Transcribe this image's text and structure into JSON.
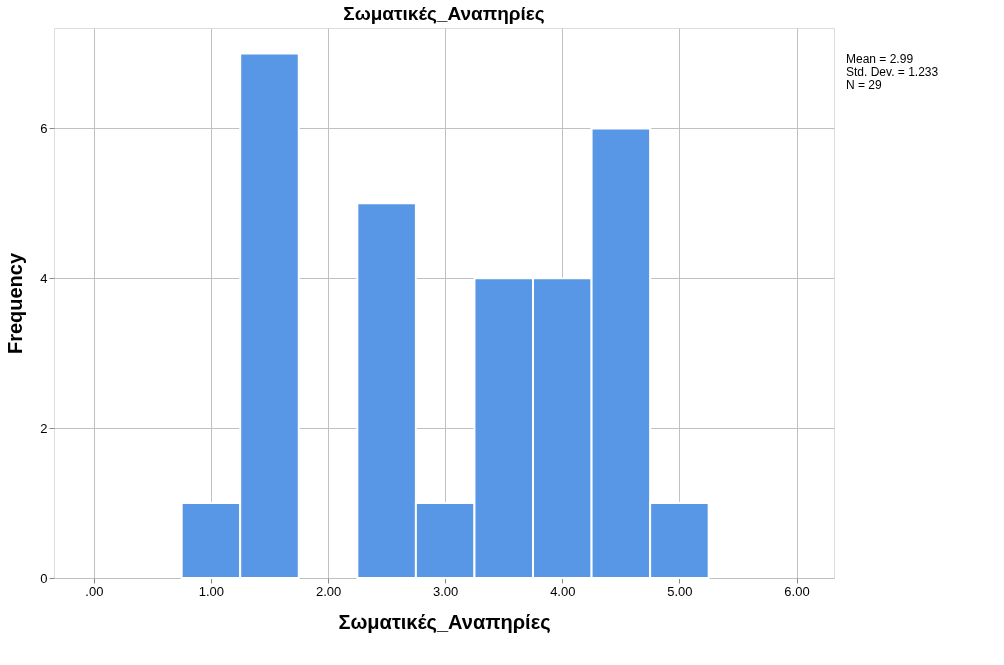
{
  "chart_data": {
    "type": "histogram",
    "title": "Σωματικές_Αναπηρίες",
    "xlabel": "Σωματικές_Αναπηρίες",
    "ylabel": "Frequency",
    "bins": [
      0.75,
      1.25,
      1.75,
      2.25,
      2.75,
      3.25,
      3.75,
      4.25,
      4.75,
      5.25
    ],
    "values": [
      1,
      7,
      0,
      5,
      1,
      4,
      4,
      6,
      1
    ],
    "color": "#5897e5",
    "xlim": [
      -0.34,
      6.32
    ],
    "ylim": [
      0,
      7.34
    ],
    "xticks": [
      {
        "value": 0,
        "label": ".00"
      },
      {
        "value": 1,
        "label": "1.00"
      },
      {
        "value": 2,
        "label": "2.00"
      },
      {
        "value": 3,
        "label": "3.00"
      },
      {
        "value": 4,
        "label": "4.00"
      },
      {
        "value": 5,
        "label": "5.00"
      },
      {
        "value": 6,
        "label": "6.00"
      }
    ],
    "yticks": [
      0,
      2,
      4,
      6
    ],
    "grid": true,
    "annotations": [
      "Mean = 2.99",
      "Std. Dev. = 1.233",
      "N = 29"
    ]
  }
}
